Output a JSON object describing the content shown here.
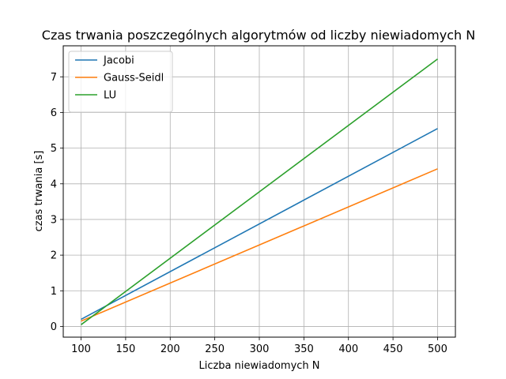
{
  "chart_data": {
    "type": "line",
    "title": "Czas trwania poszczególnych algorytmów od liczby niewiadomych N",
    "xlabel": "Liczba niewiadomych N",
    "ylabel": "czas trwania [s]",
    "x": [
      100,
      500
    ],
    "xlim": [
      80,
      520
    ],
    "ylim": [
      -0.3,
      7.87
    ],
    "xticks": [
      100,
      150,
      200,
      250,
      300,
      350,
      400,
      450,
      500
    ],
    "yticks": [
      0,
      1,
      2,
      3,
      4,
      5,
      6,
      7
    ],
    "grid": true,
    "legend_position": "top-left",
    "series": [
      {
        "name": "Jacobi",
        "color": "#1f77b4",
        "values": [
          0.2,
          5.55
        ]
      },
      {
        "name": "Gauss-Seidl",
        "color": "#ff7f0e",
        "values": [
          0.15,
          4.42
        ]
      },
      {
        "name": "LU",
        "color": "#2ca02c",
        "values": [
          0.05,
          7.5
        ]
      }
    ]
  }
}
